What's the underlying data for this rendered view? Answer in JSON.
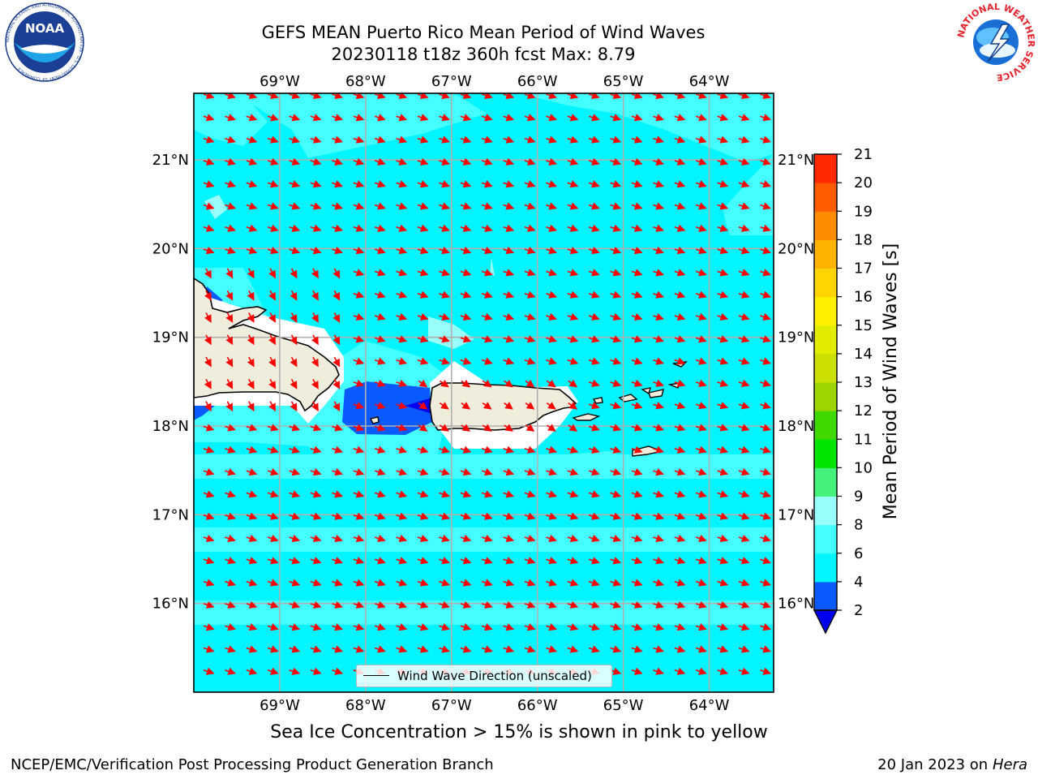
{
  "title": {
    "line1": "GEFS MEAN Puerto Rico Mean Period of Wind Waves",
    "line2": "20230118 t18z 360h fcst   Max: 8.79"
  },
  "logos": {
    "noaa_text": "NOAA",
    "noaa_ring": "NATIONAL OCEANIC AND ATMOSPHERIC ADMINISTRATION · U.S. DEPARTMENT OF COMMERCE",
    "nws_ring": "NATIONAL WEATHER SERVICE"
  },
  "map": {
    "lon_labels": [
      "69°W",
      "68°W",
      "67°W",
      "66°W",
      "65°W",
      "64°W"
    ],
    "lat_labels": [
      "21°N",
      "20°N",
      "19°N",
      "18°N",
      "17°N",
      "16°N"
    ],
    "lon_values": [
      -69,
      -68,
      -67,
      -66,
      -65,
      -64
    ],
    "lat_values": [
      21,
      20,
      19,
      18,
      17,
      16
    ],
    "extent": {
      "lon_min": -70,
      "lon_max": -63.25,
      "lat_min": 15,
      "lat_max": 21.75
    },
    "arrow_direction": "toward west-southwest (east-northeasterly wind waves)",
    "colors": {
      "ocean": "#00f5fe",
      "land": "#efeddc",
      "arrow": "#ff0000",
      "grid": "#b0b0b0"
    }
  },
  "legend": {
    "label": "Wind Wave Direction (unscaled)"
  },
  "colorbar": {
    "label": "Mean Period of Wind Waves [s]",
    "ticks": [
      "2",
      "4",
      "6",
      "8",
      "9",
      "10",
      "11",
      "12",
      "13",
      "14",
      "15",
      "16",
      "17",
      "18",
      "19",
      "20",
      "21"
    ],
    "colors": [
      "#0a5bff",
      "#00f5fe",
      "#44ffff",
      "#98fffa",
      "#44f17a",
      "#00e500",
      "#3fd900",
      "#9cd400",
      "#cbe000",
      "#e1ec00",
      "#fff000",
      "#ffd400",
      "#ffb300",
      "#ff8c00",
      "#ff5c00",
      "#ff2a00"
    ],
    "under_color": "#0000ef"
  },
  "caption": "Sea Ice Concentration > 15% is shown in pink to yellow",
  "footer": {
    "left": "NCEP/EMC/Verification Post Processing Product Generation Branch",
    "date": "20 Jan 2023 on ",
    "machine": "Hera"
  }
}
